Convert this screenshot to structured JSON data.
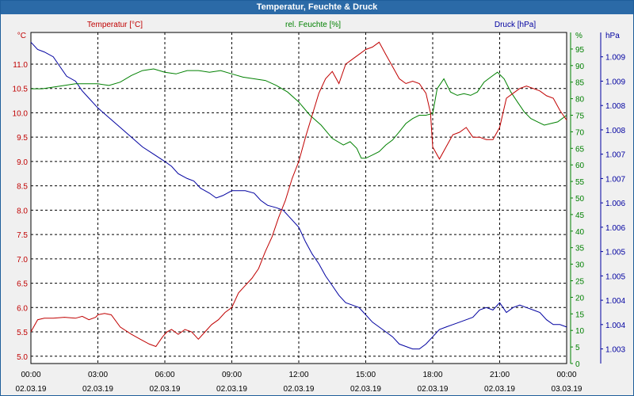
{
  "window": {
    "title": "Temperatur, Feuchte & Druck"
  },
  "chart_data": {
    "type": "line",
    "grid": true,
    "x_ticks": [
      {
        "time": "00:00",
        "date": "02.03.19"
      },
      {
        "time": "03:00",
        "date": "02.03.19"
      },
      {
        "time": "06:00",
        "date": "02.03.19"
      },
      {
        "time": "09:00",
        "date": "02.03.19"
      },
      {
        "time": "12:00",
        "date": "02.03.19"
      },
      {
        "time": "15:00",
        "date": "02.03.19"
      },
      {
        "time": "18:00",
        "date": "02.03.19"
      },
      {
        "time": "21:00",
        "date": "02.03.19"
      },
      {
        "time": "00:00",
        "date": "03.03.19"
      }
    ],
    "xlim": [
      0,
      24
    ],
    "axes": {
      "temperature": {
        "label": "Temperatur [°C]",
        "unit": "°C",
        "color": "#c00000",
        "ylim": [
          4.85,
          11.65
        ],
        "ticks": [
          "11.0",
          "10.5",
          "10.0",
          "9.5",
          "9.0",
          "8.5",
          "8.0",
          "7.5",
          "7.0",
          "6.5",
          "6.0",
          "5.5",
          "5.0"
        ],
        "tick_values": [
          11.0,
          10.5,
          10.0,
          9.5,
          9.0,
          8.5,
          8.0,
          7.5,
          7.0,
          6.5,
          6.0,
          5.5,
          5.0
        ]
      },
      "humidity": {
        "label": "rel. Feuchte [%]",
        "unit": "%",
        "color": "#008000",
        "ylim": [
          0,
          100
        ],
        "ticks": [
          "95",
          "90",
          "85",
          "80",
          "75",
          "70",
          "65",
          "60",
          "55",
          "50",
          "45",
          "40",
          "35",
          "30",
          "25",
          "20",
          "15",
          "10",
          "5",
          "0"
        ],
        "tick_values": [
          95,
          90,
          85,
          80,
          75,
          70,
          65,
          60,
          55,
          50,
          45,
          40,
          35,
          30,
          25,
          20,
          15,
          10,
          5,
          0
        ]
      },
      "pressure": {
        "label": "Druck [hPa]",
        "unit": "hPa",
        "color": "#0000a0",
        "ylim": [
          1002.7,
          1009.5
        ],
        "ticks": [
          "1.009",
          "1.009",
          "1.008",
          "1.008",
          "1.007",
          "1.007",
          "1.006",
          "1.006",
          "1.005",
          "1.005",
          "1.004",
          "1.004",
          "1.003"
        ],
        "tick_values": [
          1009.0,
          1008.5,
          1008.0,
          1007.5,
          1007.0,
          1006.5,
          1006.0,
          1005.5,
          1005.0,
          1004.5,
          1004.0,
          1003.5,
          1003.0
        ]
      }
    },
    "series": [
      {
        "name": "Temperatur [°C]",
        "axis": "temperature",
        "color": "#c00000",
        "x": [
          0,
          0.3,
          0.6,
          1.0,
          1.5,
          2.0,
          2.3,
          2.6,
          2.9,
          3.0,
          3.3,
          3.6,
          4.0,
          4.5,
          4.9,
          5.3,
          5.6,
          5.9,
          6.1,
          6.3,
          6.6,
          6.9,
          7.2,
          7.5,
          7.8,
          8.1,
          8.4,
          8.7,
          9.0,
          9.3,
          9.6,
          9.9,
          10.2,
          10.5,
          10.8,
          11.1,
          11.4,
          11.7,
          12.0,
          12.3,
          12.6,
          12.9,
          13.2,
          13.5,
          13.8,
          14.1,
          14.4,
          14.7,
          15.0,
          15.3,
          15.6,
          15.9,
          16.2,
          16.5,
          16.8,
          17.1,
          17.4,
          17.7,
          17.9,
          18.0,
          18.3,
          18.6,
          18.9,
          19.2,
          19.5,
          19.8,
          20.1,
          20.4,
          20.7,
          21.0,
          21.3,
          21.6,
          21.9,
          22.2,
          22.5,
          22.8,
          23.1,
          23.4,
          23.7,
          24.0
        ],
        "y": [
          5.5,
          5.75,
          5.78,
          5.78,
          5.8,
          5.78,
          5.82,
          5.75,
          5.8,
          5.85,
          5.88,
          5.85,
          5.6,
          5.45,
          5.35,
          5.25,
          5.2,
          5.4,
          5.5,
          5.55,
          5.45,
          5.55,
          5.5,
          5.35,
          5.5,
          5.65,
          5.75,
          5.9,
          6.0,
          6.3,
          6.45,
          6.6,
          6.8,
          7.15,
          7.45,
          7.85,
          8.2,
          8.65,
          9.0,
          9.5,
          9.95,
          10.4,
          10.7,
          10.85,
          10.6,
          11.0,
          11.1,
          11.2,
          11.3,
          11.35,
          11.45,
          11.2,
          10.95,
          10.7,
          10.6,
          10.65,
          10.6,
          10.4,
          10.0,
          9.3,
          9.05,
          9.3,
          9.55,
          9.6,
          9.7,
          9.5,
          9.5,
          9.45,
          9.45,
          9.7,
          10.3,
          10.4,
          10.5,
          10.55,
          10.5,
          10.45,
          10.35,
          10.3,
          10.05,
          9.85
        ]
      },
      {
        "name": "rel. Feuchte [%]",
        "axis": "humidity",
        "color": "#008000",
        "x": [
          0,
          0.5,
          1.0,
          1.5,
          2.0,
          2.5,
          3.0,
          3.5,
          4.0,
          4.5,
          5.0,
          5.5,
          6.0,
          6.5,
          7.0,
          7.5,
          8.0,
          8.5,
          9.0,
          9.5,
          10.0,
          10.5,
          11.0,
          11.5,
          12.0,
          12.5,
          13.0,
          13.5,
          14.0,
          14.3,
          14.6,
          14.8,
          15.0,
          15.3,
          15.6,
          15.9,
          16.2,
          16.5,
          16.8,
          17.1,
          17.4,
          17.7,
          18.0,
          18.2,
          18.5,
          18.8,
          19.1,
          19.4,
          19.7,
          20.0,
          20.3,
          20.6,
          20.9,
          21.2,
          21.5,
          21.8,
          22.1,
          22.4,
          22.7,
          23.0,
          23.3,
          23.6,
          24.0
        ],
        "y": [
          83,
          83,
          83.5,
          84,
          84.5,
          84.5,
          84.5,
          84,
          85,
          87,
          88.5,
          89,
          88,
          87.5,
          88.5,
          88.5,
          88,
          88.5,
          87.5,
          86.5,
          86,
          85.5,
          84,
          82,
          79,
          75,
          72,
          68,
          66,
          67,
          65,
          62,
          62,
          63,
          64,
          66,
          67.5,
          70,
          72.5,
          74,
          75,
          75,
          75.5,
          83,
          86,
          82,
          81,
          81.5,
          81,
          82,
          85,
          86.5,
          88,
          86,
          82,
          79,
          76,
          74,
          73,
          72,
          72.5,
          73,
          75
        ]
      },
      {
        "name": "Druck [hPa]",
        "axis": "pressure",
        "color": "#0000a0",
        "x": [
          0,
          0.3,
          0.6,
          1.0,
          1.3,
          1.6,
          2.0,
          2.3,
          2.6,
          3.0,
          3.5,
          4.0,
          4.5,
          5.0,
          5.5,
          6.0,
          6.3,
          6.6,
          7.0,
          7.3,
          7.6,
          8.0,
          8.3,
          8.6,
          9.0,
          9.3,
          9.6,
          10.0,
          10.3,
          10.6,
          11.0,
          11.3,
          11.6,
          12.0,
          12.3,
          12.6,
          12.9,
          13.2,
          13.5,
          13.8,
          14.1,
          14.4,
          14.7,
          15.0,
          15.3,
          15.6,
          15.9,
          16.2,
          16.5,
          16.8,
          17.1,
          17.4,
          17.7,
          18.0,
          18.3,
          18.6,
          18.9,
          19.2,
          19.5,
          19.8,
          20.1,
          20.4,
          20.7,
          21.0,
          21.3,
          21.6,
          21.9,
          22.2,
          22.5,
          22.8,
          23.1,
          23.4,
          23.7,
          24.0
        ],
        "y": [
          1009.3,
          1009.15,
          1009.1,
          1009.0,
          1008.8,
          1008.6,
          1008.5,
          1008.3,
          1008.15,
          1007.95,
          1007.75,
          1007.55,
          1007.35,
          1007.15,
          1007.0,
          1006.85,
          1006.75,
          1006.6,
          1006.5,
          1006.45,
          1006.3,
          1006.2,
          1006.1,
          1006.15,
          1006.25,
          1006.25,
          1006.25,
          1006.2,
          1006.05,
          1005.95,
          1005.9,
          1005.85,
          1005.7,
          1005.5,
          1005.2,
          1004.95,
          1004.75,
          1004.5,
          1004.3,
          1004.1,
          1003.95,
          1003.9,
          1003.85,
          1003.7,
          1003.55,
          1003.45,
          1003.35,
          1003.25,
          1003.1,
          1003.05,
          1003.0,
          1003.0,
          1003.1,
          1003.25,
          1003.4,
          1003.45,
          1003.5,
          1003.55,
          1003.6,
          1003.65,
          1003.8,
          1003.85,
          1003.8,
          1003.95,
          1003.75,
          1003.85,
          1003.9,
          1003.85,
          1003.8,
          1003.75,
          1003.6,
          1003.5,
          1003.5,
          1003.45
        ]
      }
    ]
  }
}
